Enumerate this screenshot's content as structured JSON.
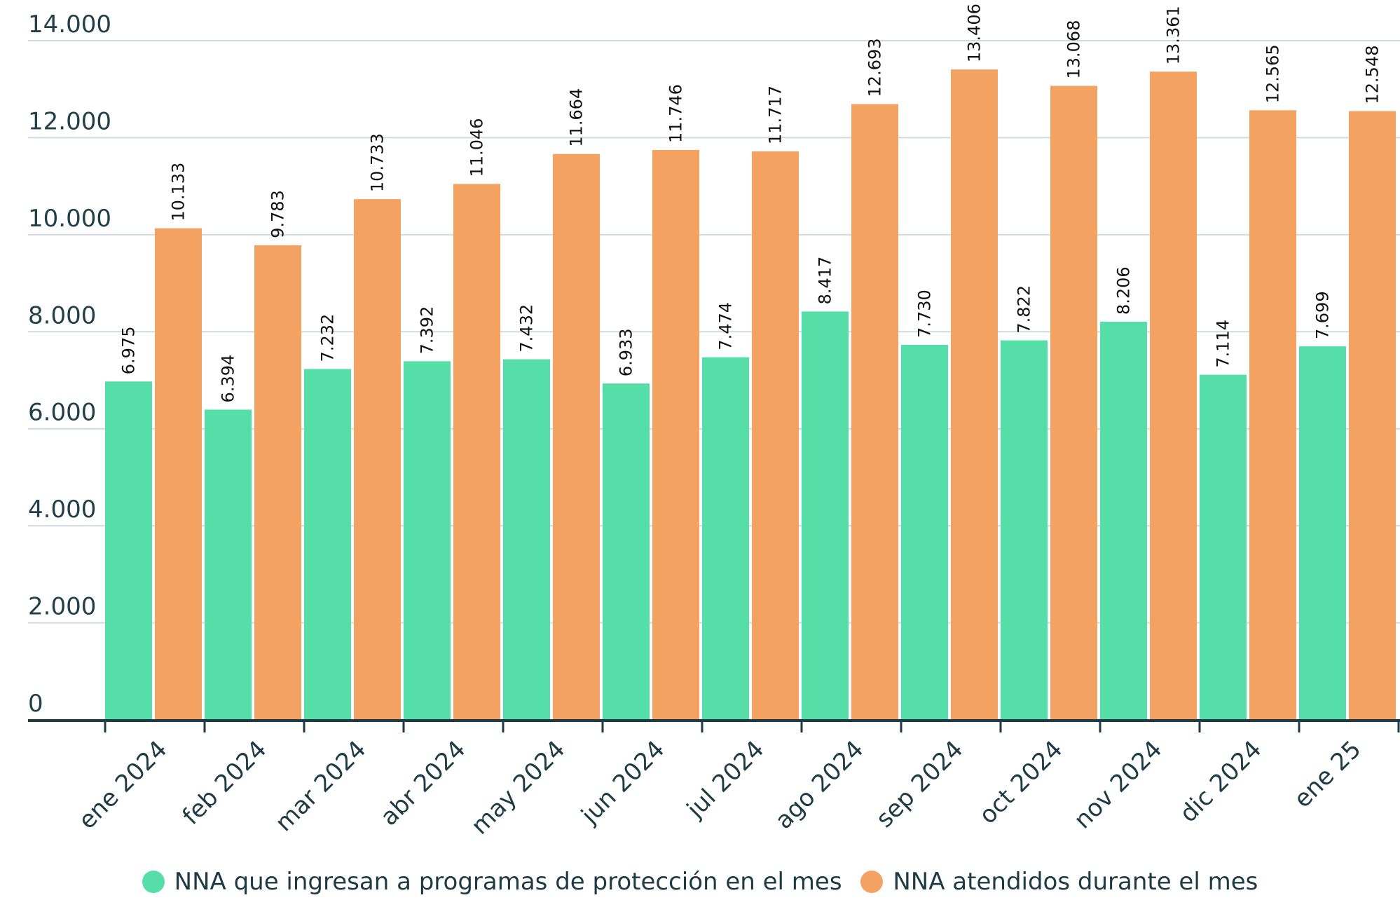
{
  "chart_data": {
    "type": "bar",
    "title": "",
    "xlabel": "",
    "ylabel": "",
    "ylim": [
      0,
      14000
    ],
    "yticks": [
      "0",
      "2.000",
      "4.000",
      "6.000",
      "8.000",
      "10.000",
      "12.000",
      "14.000"
    ],
    "ytick_values": [
      0,
      2000,
      4000,
      6000,
      8000,
      10000,
      12000,
      14000
    ],
    "grid": true,
    "legend_position": "bottom",
    "categories": [
      "ene 2024",
      "feb 2024",
      "mar 2024",
      "abr 2024",
      "may 2024",
      "jun 2024",
      "jul 2024",
      "ago 2024",
      "sep 2024",
      "oct 2024",
      "nov 2024",
      "dic 2024",
      "ene 25"
    ],
    "series": [
      {
        "name": "NNA que ingresan a programas de protección en el mes",
        "color": "#55dea8",
        "values": [
          6975,
          6394,
          7232,
          7392,
          7432,
          6933,
          7474,
          8417,
          7730,
          7822,
          8206,
          7114,
          7699
        ],
        "labels": [
          "6.975",
          "6.394",
          "7.232",
          "7.392",
          "7.432",
          "6.933",
          "7.474",
          "8.417",
          "7.730",
          "7.822",
          "8.206",
          "7.114",
          "7.699"
        ]
      },
      {
        "name": "NNA atendidos durante el mes",
        "color": "#f3a262",
        "values": [
          10133,
          9783,
          10733,
          11046,
          11664,
          11746,
          11717,
          12693,
          13406,
          13068,
          13361,
          12565,
          12548
        ],
        "labels": [
          "10.133",
          "9.783",
          "10.733",
          "11.046",
          "11.664",
          "11.746",
          "11.717",
          "12.693",
          "13.406",
          "13.068",
          "13.361",
          "12.565",
          "12.548"
        ]
      }
    ]
  }
}
